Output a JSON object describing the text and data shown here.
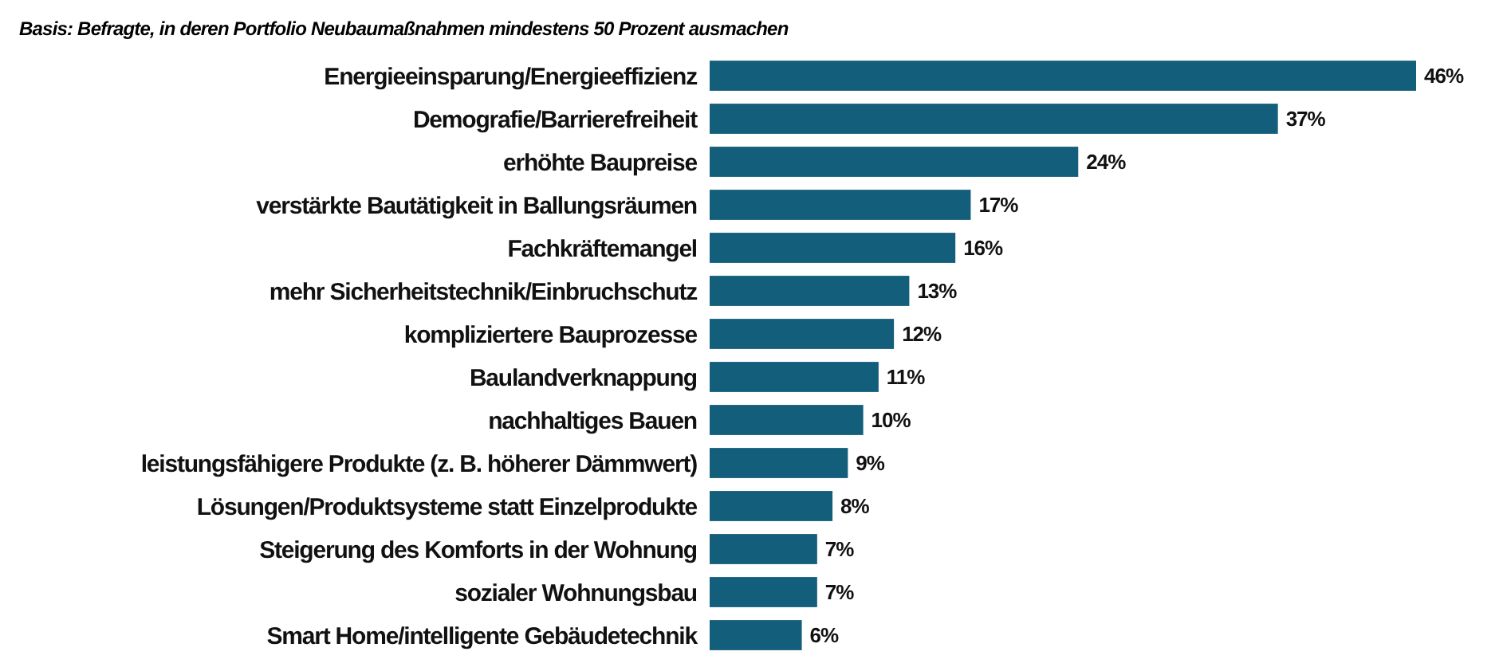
{
  "chart_data": {
    "type": "bar",
    "orientation": "horizontal",
    "subtitle": "Basis: Befragte, in deren Portfolio Neubaumaßnahmen mindestens 50 Prozent ausmachen",
    "categories": [
      "Energieeinsparung/Energieeffizienz",
      "Demografie/Barrierefreiheit",
      "erhöhte Baupreise",
      "verstärkte Bautätigkeit in Ballungsräumen",
      "Fachkräftemangel",
      "mehr Sicherheitstechnik/Einbruchschutz",
      "kompliziertere Bauprozesse",
      "Baulandverknappung",
      "nachhaltiges Bauen",
      "leistungsfähigere Produkte (z. B. höherer Dämmwert)",
      "Lösungen/Produktsysteme statt Einzelprodukte",
      "Steigerung des Komforts in der Wohnung",
      "sozialer Wohnungsbau",
      "Smart Home/intelligente Gebäudetechnik"
    ],
    "values": [
      46,
      37,
      24,
      17,
      16,
      13,
      12,
      11,
      10,
      9,
      8,
      7,
      7,
      6
    ],
    "value_labels": [
      "46%",
      "37%",
      "24%",
      "17%",
      "16%",
      "13%",
      "12%",
      "11%",
      "10%",
      "9%",
      "8%",
      "7%",
      "7%",
      "6%"
    ],
    "color": "#135e7b"
  }
}
